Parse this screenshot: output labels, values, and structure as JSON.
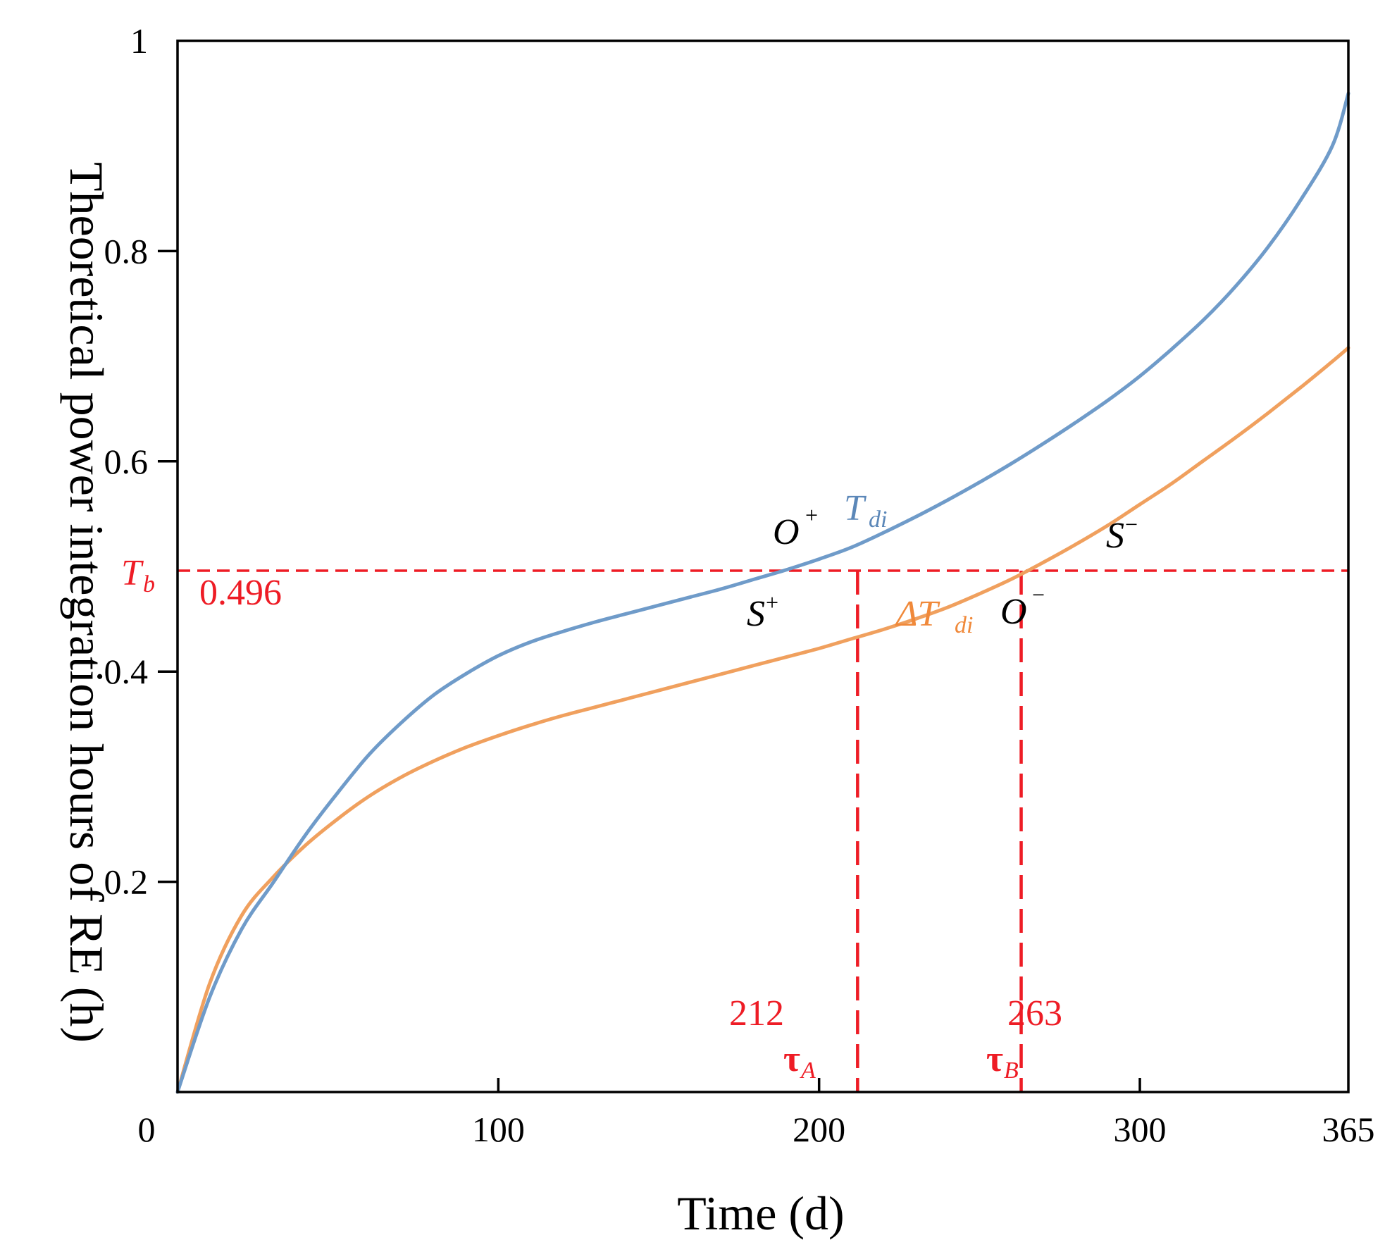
{
  "chart_data": {
    "type": "line",
    "xlabel": "Time (d)",
    "ylabel": "Theoretical power integration hours of RE (h)",
    "xlim": [
      0,
      365
    ],
    "ylim": [
      0,
      1
    ],
    "x_ticks": [
      0,
      100,
      200,
      300,
      365
    ],
    "x_tick_labels": [
      "0",
      "100",
      "200",
      "300",
      "365"
    ],
    "y_ticks": [
      0.2,
      0.4,
      0.6,
      0.8,
      1
    ],
    "y_tick_labels": [
      "0.2",
      "0.4",
      "0.6",
      "0.8",
      "1"
    ],
    "grid": false,
    "series": [
      {
        "name": "T_di",
        "color": "#6f9bc9",
        "x": [
          0,
          10,
          20,
          30,
          40,
          50,
          60,
          70,
          80,
          90,
          100,
          110,
          120,
          130,
          140,
          150,
          160,
          170,
          180,
          190,
          200,
          210,
          220,
          230,
          240,
          250,
          260,
          270,
          280,
          290,
          300,
          310,
          320,
          330,
          340,
          350,
          360,
          365
        ],
        "y": [
          0,
          0.09,
          0.155,
          0.2,
          0.245,
          0.285,
          0.322,
          0.352,
          0.378,
          0.398,
          0.415,
          0.428,
          0.438,
          0.447,
          0.455,
          0.463,
          0.471,
          0.479,
          0.488,
          0.497,
          0.507,
          0.518,
          0.532,
          0.547,
          0.563,
          0.58,
          0.598,
          0.617,
          0.637,
          0.658,
          0.681,
          0.707,
          0.735,
          0.767,
          0.804,
          0.848,
          0.9,
          0.95
        ]
      },
      {
        "name": "ΔT_di",
        "color": "#f0a05e",
        "x": [
          0,
          10,
          20,
          30,
          40,
          50,
          60,
          70,
          80,
          90,
          100,
          110,
          120,
          130,
          140,
          150,
          160,
          170,
          180,
          190,
          200,
          210,
          220,
          230,
          240,
          250,
          260,
          270,
          280,
          290,
          300,
          310,
          320,
          330,
          340,
          350,
          360,
          365
        ],
        "y": [
          0,
          0.103,
          0.168,
          0.205,
          0.235,
          0.26,
          0.282,
          0.3,
          0.315,
          0.328,
          0.339,
          0.349,
          0.358,
          0.366,
          0.374,
          0.382,
          0.39,
          0.398,
          0.406,
          0.414,
          0.422,
          0.431,
          0.44,
          0.45,
          0.461,
          0.474,
          0.488,
          0.504,
          0.521,
          0.539,
          0.559,
          0.579,
          0.601,
          0.623,
          0.646,
          0.67,
          0.695,
          0.708
        ]
      }
    ],
    "reference_lines": {
      "color": "#ee1c25",
      "horizontal": {
        "y": 0.496
      },
      "vertical": [
        {
          "x": 212
        },
        {
          "x": 263
        }
      ]
    },
    "annotations": {
      "tb_main": "T",
      "tb_sub": "b",
      "tb_value": "0.496",
      "tau_a_value": "212",
      "tau_a_main": "τ",
      "tau_a_sub": "A",
      "tau_b_value": "263",
      "tau_b_main": "τ",
      "tau_b_sub": "B",
      "tdi_main": "T",
      "tdi_sub": "di",
      "dtdi_main": "ΔT",
      "dtdi_sub": "di",
      "o_plus_main": "O",
      "o_plus_sup": "+",
      "o_minus_main": "O",
      "o_minus_sup": "−",
      "s_plus_main": "S",
      "s_plus_sup": "+",
      "s_minus_main": "S",
      "s_minus_sup": "−"
    }
  }
}
